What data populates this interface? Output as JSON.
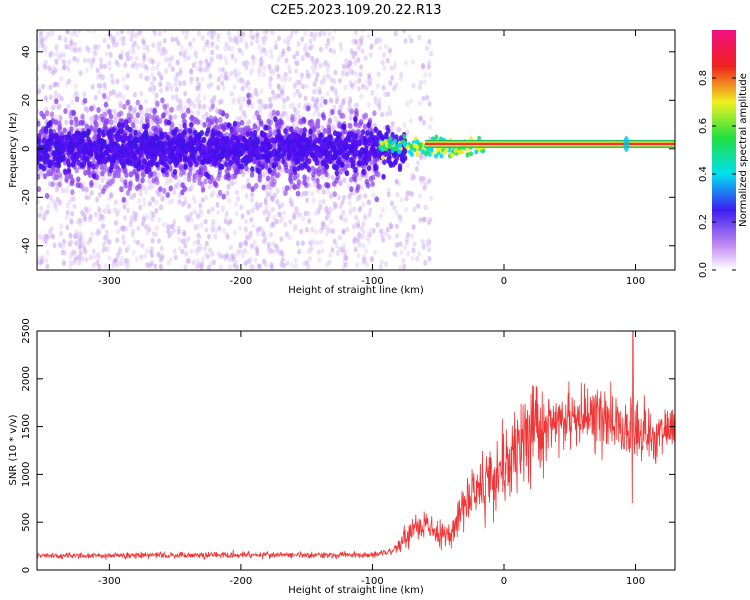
{
  "chart_data": [
    {
      "type": "heatmap",
      "title": "C2E5.2023.109.20.22.R13",
      "xlabel": "Height of straight line (km)",
      "ylabel": "Frequency (Hz)",
      "xlim": [
        -355,
        130
      ],
      "ylim": [
        -50,
        49
      ],
      "xticks": [
        -300,
        -200,
        -100,
        0,
        100
      ],
      "xtick_labels": [
        "-300",
        "-200",
        "-100",
        "0",
        "100"
      ],
      "yticks": [
        -40,
        -20,
        0,
        20,
        40
      ],
      "ytick_labels": [
        "-40",
        "-20",
        "0",
        "20",
        "40"
      ],
      "colorbar": {
        "label": "Normalized spectral amplitude",
        "range": [
          0,
          1
        ],
        "ticks": [
          0.0,
          0.2,
          0.4,
          0.6,
          0.8
        ],
        "tick_labels": [
          "0.0",
          "0.2",
          "0.4",
          "0.6",
          "0.8"
        ]
      },
      "features": {
        "broadband_noise_x": [
          -355,
          -55
        ],
        "broadband_noise_y_spread": 45,
        "core_band_y_spread": 8,
        "narrow_line_x": [
          -60,
          130
        ],
        "narrow_line_frequency_hz": 2,
        "spike_x": 93
      },
      "grid": false,
      "legend": "none"
    },
    {
      "type": "line",
      "title": "",
      "xlabel": "Height of straight line (km)",
      "ylabel": "SNR (10 * v/v)",
      "xlim": [
        -355,
        130
      ],
      "ylim": [
        0,
        2500
      ],
      "xticks": [
        -300,
        -200,
        -100,
        0,
        100
      ],
      "xtick_labels": [
        "-300",
        "-200",
        "-100",
        "0",
        "100"
      ],
      "yticks": [
        0,
        500,
        1000,
        1500,
        2000,
        2500
      ],
      "ytick_labels": [
        "0",
        "500",
        "1000",
        "1500",
        "2000",
        "2500"
      ],
      "series": [
        {
          "color": "#ef3535",
          "x": [
            -355,
            -300,
            -250,
            -200,
            -150,
            -100,
            -85,
            -70,
            -60,
            -50,
            -40,
            -30,
            -20,
            -10,
            0,
            10,
            20,
            30,
            40,
            60,
            80,
            90,
            97,
            100,
            110,
            130
          ],
          "y": [
            150,
            150,
            155,
            160,
            155,
            160,
            200,
            400,
            500,
            350,
            400,
            700,
            850,
            1000,
            1100,
            1250,
            1400,
            1500,
            1550,
            1600,
            1550,
            1500,
            1450,
            1450,
            1450,
            1450
          ],
          "spike_x": 98,
          "spike_y": 2500,
          "dip_y": 700
        }
      ],
      "grid": false,
      "legend": "none"
    }
  ]
}
